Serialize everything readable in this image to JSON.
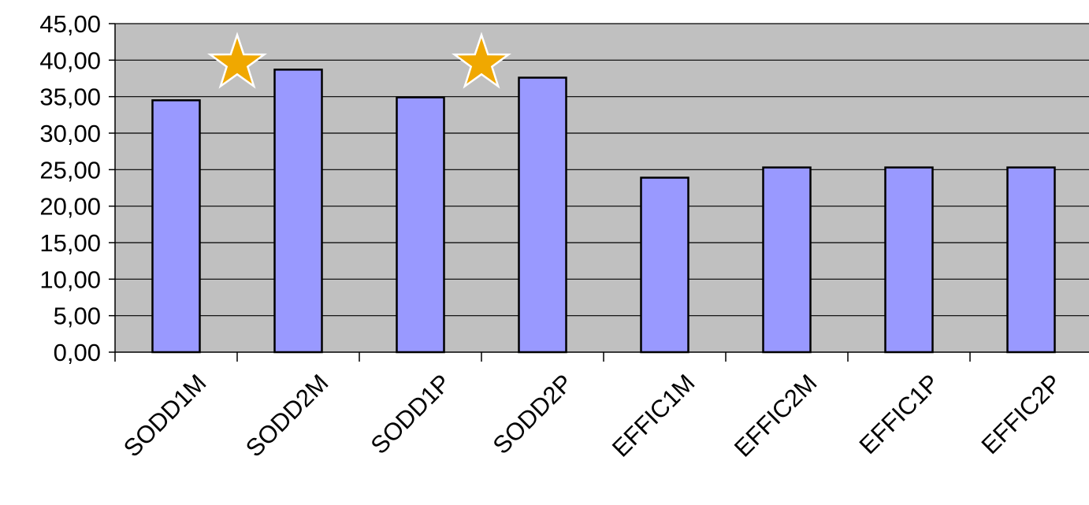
{
  "chart_data": {
    "type": "bar",
    "title": "",
    "xlabel": "",
    "ylabel": "",
    "categories": [
      "SODD1M",
      "SODD2M",
      "SODD1P",
      "SODD2P",
      "EFFIC1M",
      "EFFIC2M",
      "EFFIC1P",
      "EFFIC2P"
    ],
    "values": [
      34.5,
      38.7,
      34.9,
      37.6,
      23.9,
      25.3,
      25.3,
      25.3
    ],
    "ylim": [
      0,
      45
    ],
    "yticks": [
      "0,00",
      "5,00",
      "10,00",
      "15,00",
      "20,00",
      "25,00",
      "30,00",
      "35,00",
      "40,00",
      "45,00"
    ],
    "ytick_values": [
      0,
      5,
      10,
      15,
      20,
      25,
      30,
      35,
      40,
      45
    ],
    "grid": true,
    "legend": "none",
    "annotations": [
      {
        "type": "star",
        "between": [
          "SODD1M",
          "SODD2M"
        ],
        "y": 40
      },
      {
        "type": "star",
        "between": [
          "SODD1P",
          "SODD2P"
        ],
        "y": 40
      }
    ],
    "colors": {
      "bar_fill": "#9999ff",
      "bar_stroke": "#000000",
      "plot_bg": "#c0c0c0",
      "grid": "#000000",
      "star_fill": "#f0a800",
      "star_stroke": "#ffffff"
    }
  }
}
